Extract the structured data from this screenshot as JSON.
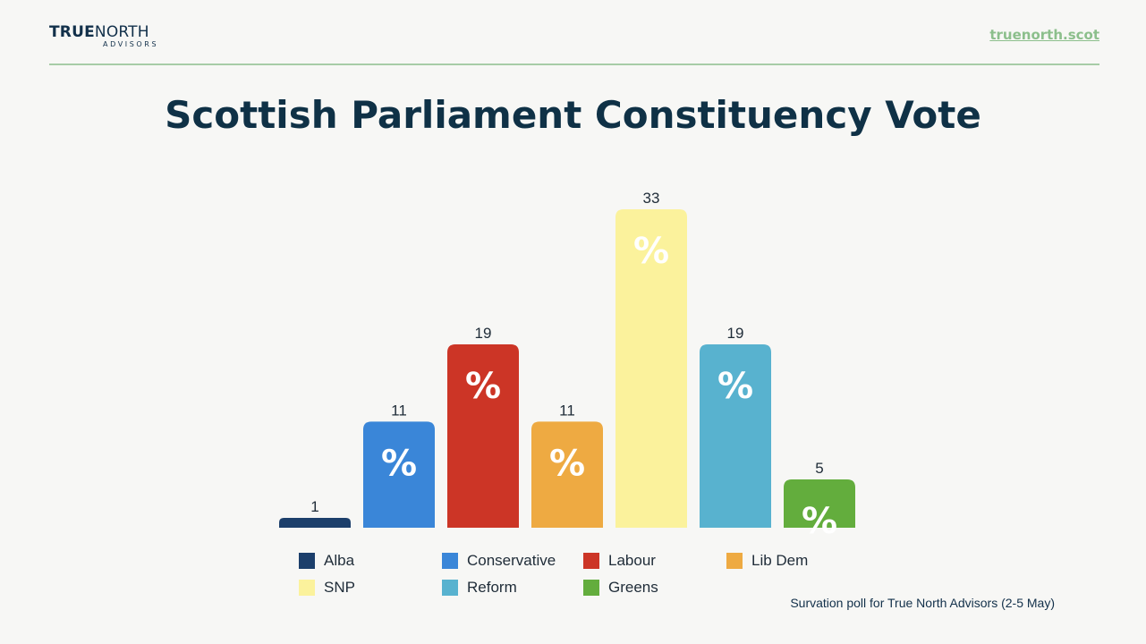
{
  "header": {
    "logo_bold": "TRUE",
    "logo_light": "NORTH",
    "logo_sub": "ADVISORS",
    "site_link": "truenorth.scot"
  },
  "source_note": "Survation poll for True North Advisors (2-5 May)",
  "chart_data": {
    "type": "bar",
    "title": "Scottish Parliament Constituency Vote",
    "categories": [
      "Alba",
      "Conservative",
      "Labour",
      "Lib Dem",
      "SNP",
      "Reform",
      "Greens"
    ],
    "values": [
      1,
      11,
      19,
      11,
      33,
      19,
      5
    ],
    "unit_label": "%",
    "colors": [
      "#1c3f6b",
      "#3a86d8",
      "#cc3526",
      "#eeaa42",
      "#fbf29c",
      "#58b2cf",
      "#63ad3d"
    ],
    "ylim": [
      0,
      33
    ],
    "grid": false,
    "legend": {
      "position": "bottom",
      "items": [
        {
          "label": "Alba",
          "color": "#1c3f6b"
        },
        {
          "label": "Conservative",
          "color": "#3a86d8"
        },
        {
          "label": "Labour",
          "color": "#cc3526"
        },
        {
          "label": "Lib Dem",
          "color": "#eeaa42"
        },
        {
          "label": "SNP",
          "color": "#fbf29c"
        },
        {
          "label": "Reform",
          "color": "#58b2cf"
        },
        {
          "label": "Greens",
          "color": "#63ad3d"
        }
      ]
    }
  }
}
